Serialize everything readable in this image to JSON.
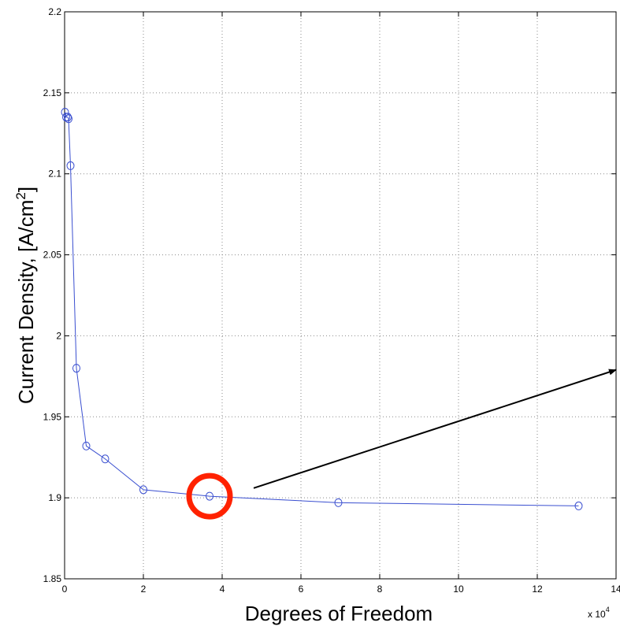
{
  "chart_data": {
    "type": "line",
    "xlabel": "Degrees of Freedom",
    "ylabel_main": "Current Density, [A/cm",
    "ylabel_sup": "2",
    "ylabel_end": "]",
    "x_multiplier_base": "x 10",
    "x_multiplier_exp": "4",
    "xlim": [
      0,
      14
    ],
    "ylim": [
      1.85,
      2.2
    ],
    "xticks": [
      0,
      2,
      4,
      6,
      8,
      10,
      12,
      14
    ],
    "xtick_labels": [
      "0",
      "2",
      "4",
      "6",
      "8",
      "10",
      "12",
      "14"
    ],
    "yticks": [
      1.85,
      1.9,
      1.95,
      2.0,
      2.05,
      2.1,
      2.15,
      2.2
    ],
    "ytick_labels": [
      "1.85",
      "1.9",
      "1.95",
      "2",
      "2.05",
      "2.1",
      "2.15",
      "2.2"
    ],
    "grid": true,
    "series": [
      {
        "color": "#3a4fd0",
        "marker": "circle",
        "x": [
          0.01,
          0.04,
          0.08,
          0.1,
          0.15,
          0.3,
          0.55,
          1.03,
          2.0,
          3.68,
          6.95,
          13.05
        ],
        "y": [
          2.138,
          2.135,
          2.135,
          2.134,
          2.105,
          1.98,
          1.932,
          1.924,
          1.905,
          1.901,
          1.897,
          1.895
        ]
      }
    ],
    "annotations": [
      {
        "type": "circle-highlight",
        "x": 3.68,
        "y": 1.901,
        "color": "#ff2200"
      },
      {
        "type": "arrow",
        "from": [
          4.8,
          1.906
        ],
        "to": [
          14.0,
          1.979
        ],
        "color": "#000000"
      }
    ]
  }
}
